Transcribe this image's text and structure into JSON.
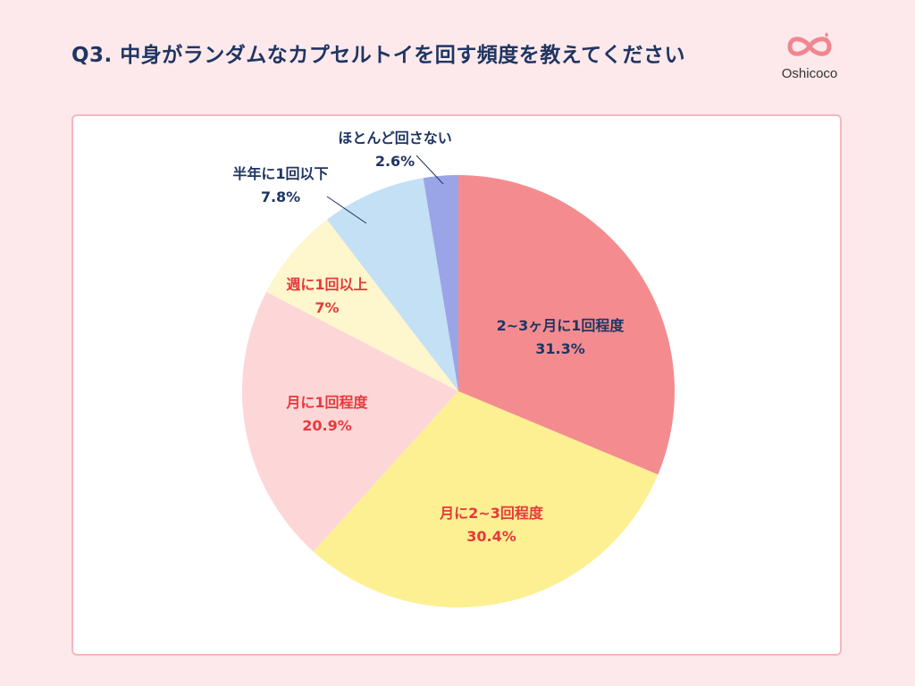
{
  "header": {
    "title": "Q3. 中身がランダムなカプセルトイを回す頻度を教えてください",
    "logo_text": "Oshicoco",
    "logo_mark": "logo-infinity-heart-icon"
  },
  "colors": {
    "background": "#fde9eb",
    "title": "#1f3562",
    "card_border": "#f7b6bd",
    "logo": "#f0868f",
    "label_navy": "#1f3562",
    "label_red": "#e8383d"
  },
  "chart_data": {
    "type": "pie",
    "title": "",
    "start_angle_deg": 0,
    "direction": "clockwise",
    "slices": [
      {
        "label": "2~3ヶ月に1回程度",
        "value": 31.3,
        "value_label": "31.3%",
        "color": "#f48c8f",
        "label_color": "#1f3562"
      },
      {
        "label": "月に2~3回程度",
        "value": 30.4,
        "value_label": "30.4%",
        "color": "#fdf092",
        "label_color": "#e8383d"
      },
      {
        "label": "月に1回程度",
        "value": 20.9,
        "value_label": "20.9%",
        "color": "#fdd7d7",
        "label_color": "#e8383d"
      },
      {
        "label": "週に1回以上",
        "value": 7,
        "value_label": "7%",
        "color": "#fef6cc",
        "label_color": "#e8383d"
      },
      {
        "label": "半年に1回以下",
        "value": 7.8,
        "value_label": "7.8%",
        "color": "#c4e0f5",
        "label_color": "#1f3562"
      },
      {
        "label": "ほとんど回さない",
        "value": 2.6,
        "value_label": "2.6%",
        "color": "#9aa5e8",
        "label_color": "#1f3562"
      }
    ]
  }
}
